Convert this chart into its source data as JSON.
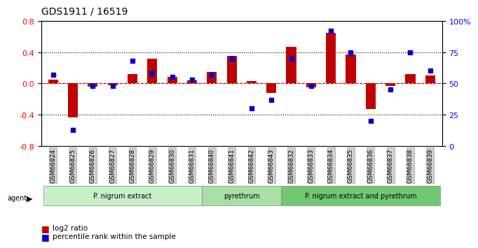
{
  "title": "GDS1911 / 16519",
  "samples": [
    "GSM66824",
    "GSM66825",
    "GSM66826",
    "GSM66827",
    "GSM66828",
    "GSM66829",
    "GSM66830",
    "GSM66831",
    "GSM66840",
    "GSM66841",
    "GSM66842",
    "GSM66843",
    "GSM66832",
    "GSM66833",
    "GSM66834",
    "GSM66835",
    "GSM66836",
    "GSM66837",
    "GSM66838",
    "GSM66839"
  ],
  "log2_ratio": [
    0.05,
    -0.43,
    -0.04,
    -0.02,
    0.12,
    0.32,
    0.08,
    0.04,
    0.15,
    0.35,
    0.03,
    -0.12,
    0.47,
    -0.05,
    0.65,
    0.37,
    -0.33,
    -0.03,
    0.12,
    0.1
  ],
  "pct_rank": [
    57,
    13,
    48,
    48,
    68,
    58,
    55,
    53,
    57,
    70,
    30,
    37,
    70,
    48,
    92,
    75,
    20,
    45,
    75,
    60
  ],
  "groups": [
    {
      "label": "P. nigrum extract",
      "start": 0,
      "end": 8,
      "color": "#c8f0c8"
    },
    {
      "label": "pyrethrum",
      "start": 8,
      "end": 12,
      "color": "#a8e0a8"
    },
    {
      "label": "P. nigrum extract and pyrethrum",
      "start": 12,
      "end": 20,
      "color": "#70c870"
    }
  ],
  "bar_color": "#c00000",
  "dot_color": "#0000cc",
  "ylim_left": [
    -0.8,
    0.8
  ],
  "ylim_right": [
    0,
    100
  ],
  "yticks_left": [
    -0.8,
    -0.4,
    0.0,
    0.4,
    0.8
  ],
  "yticks_right": [
    0,
    25,
    50,
    75,
    100
  ],
  "ytick_labels_right": [
    "0",
    "25",
    "50",
    "75",
    "100%"
  ],
  "hline_color": "#cc0000",
  "legend_bar_label": "log2 ratio",
  "legend_dot_label": "percentile rank within the sample"
}
